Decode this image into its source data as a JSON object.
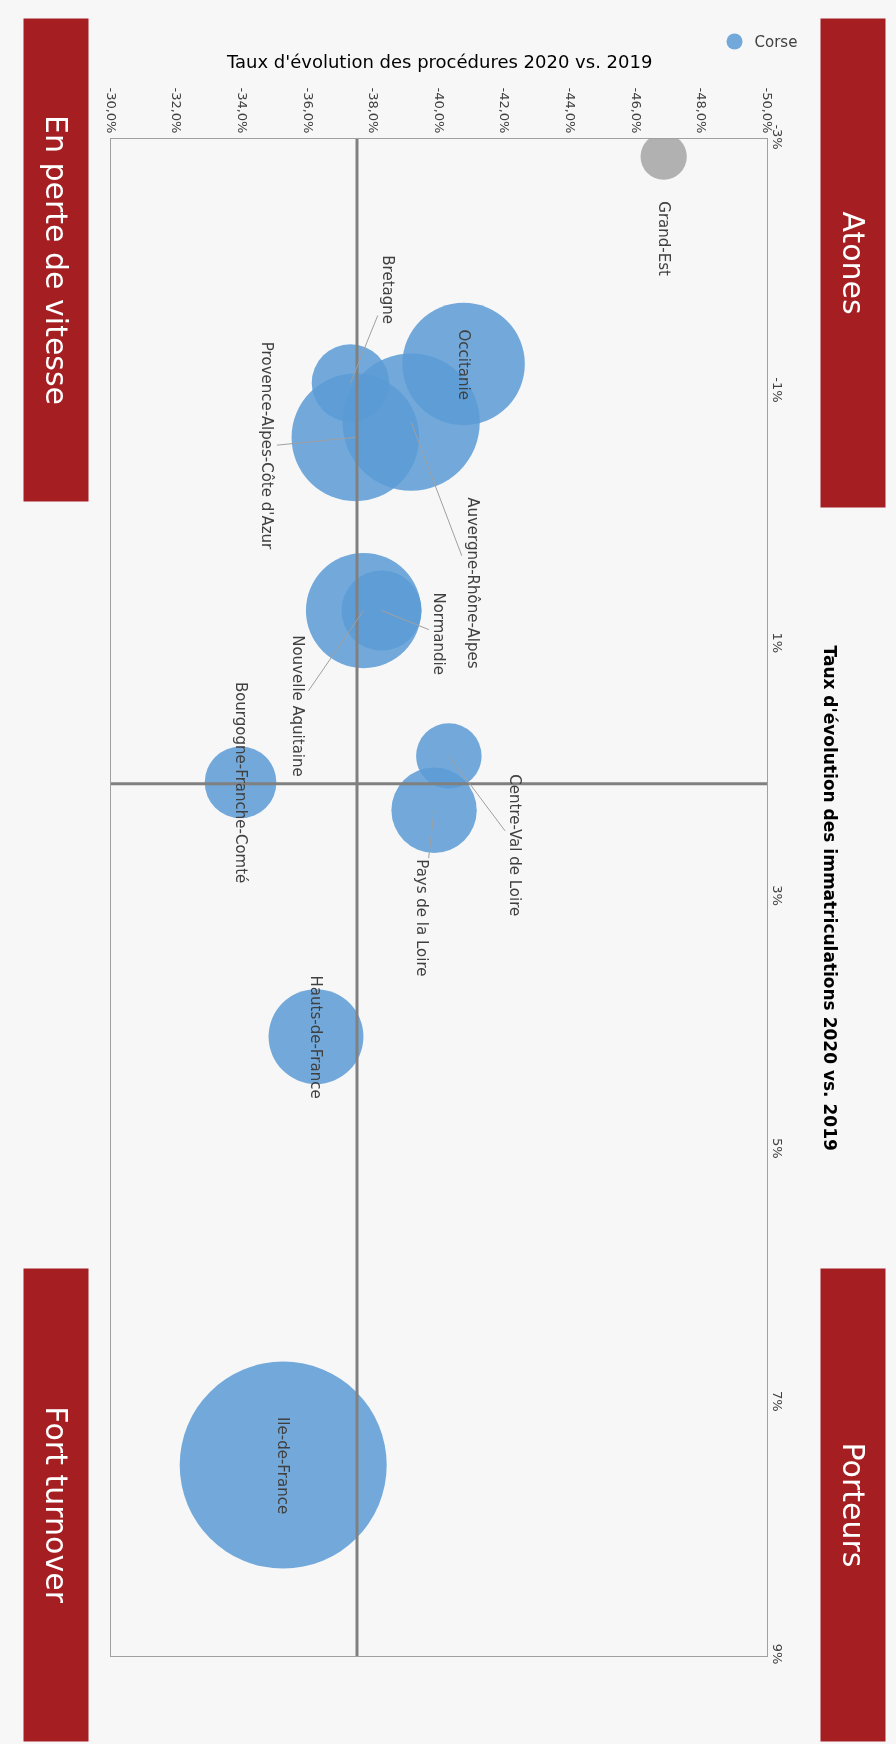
{
  "chart_data": {
    "type": "bubble",
    "xlabel": "Taux d'évolution des procédures 2020 vs. 2019",
    "ylabel": "Taux d'évolution des immatriculations 2020 vs. 2019",
    "xlim": [
      -30,
      -50
    ],
    "xticks": [
      {
        "value": -30,
        "label": "-30,0%"
      },
      {
        "value": -32,
        "label": "-32,0%"
      },
      {
        "value": -34,
        "label": "-34,0%"
      },
      {
        "value": -36,
        "label": "-36,0%"
      },
      {
        "value": -38,
        "label": "-38,0%"
      },
      {
        "value": -40,
        "label": "-40,0%"
      },
      {
        "value": -42,
        "label": "-42,0%"
      },
      {
        "value": -44,
        "label": "-44,0%"
      },
      {
        "value": -46,
        "label": "-46,0%"
      },
      {
        "value": -48,
        "label": "-48,0%"
      },
      {
        "value": -50,
        "label": "-50,0%"
      }
    ],
    "ylim": [
      9,
      -3
    ],
    "yticks": [
      {
        "value": -3,
        "label": "-3%"
      },
      {
        "value": -1,
        "label": "-1%"
      },
      {
        "value": 1,
        "label": "1%"
      },
      {
        "value": 3,
        "label": "3%"
      },
      {
        "value": 5,
        "label": "5%"
      },
      {
        "value": 7,
        "label": "7%"
      },
      {
        "value": 9,
        "label": "9%"
      }
    ],
    "series": [
      {
        "name": "Grand-Est",
        "color": "#a5a5a5",
        "x": [
          -46.85
        ],
        "values": [
          -2.86
        ],
        "sizes": [
          0.05
        ]
      },
      {
        "name": "Occitanie",
        "color": "#5b9bd5",
        "x": [
          -40.75
        ],
        "values": [
          -1.22
        ],
        "sizes": [
          0.35
        ]
      },
      {
        "name": "Auvergne-Rhône-Alpes",
        "color": "#5b9bd5",
        "x": [
          -39.15
        ],
        "values": [
          -0.76
        ],
        "sizes": [
          0.44
        ]
      },
      {
        "name": "Bretagne",
        "color": "#5b9bd5",
        "x": [
          -37.3
        ],
        "values": [
          -1.07
        ],
        "sizes": [
          0.14
        ]
      },
      {
        "name": "Provence-Alpes-Côte d'Azur",
        "color": "#5b9bd5",
        "x": [
          -37.45
        ],
        "values": [
          -0.64
        ],
        "sizes": [
          0.38
        ]
      },
      {
        "name": "Nouvelle Aquitaine",
        "color": "#5b9bd5",
        "x": [
          -37.7
        ],
        "values": [
          0.73
        ],
        "sizes": [
          0.31
        ]
      },
      {
        "name": "Normandie",
        "color": "#5b9bd5",
        "x": [
          -38.25
        ],
        "values": [
          0.73
        ],
        "sizes": [
          0.15
        ]
      },
      {
        "name": "Centre-Val de Loire",
        "color": "#5b9bd5",
        "x": [
          -40.3
        ],
        "values": [
          1.88
        ],
        "sizes": [
          0.1
        ]
      },
      {
        "name": "Pays de la Loire",
        "color": "#5b9bd5",
        "x": [
          -39.85
        ],
        "values": [
          2.31
        ],
        "sizes": [
          0.17
        ]
      },
      {
        "name": "Bourgogne-Franche-Comté",
        "color": "#5b9bd5",
        "x": [
          -33.95
        ],
        "values": [
          2.09
        ],
        "sizes": [
          0.12
        ]
      },
      {
        "name": "Hauts-de-France",
        "color": "#5b9bd5",
        "x": [
          -36.25
        ],
        "values": [
          4.1
        ],
        "sizes": [
          0.21
        ]
      },
      {
        "name": "Ile-de-France",
        "color": "#5b9bd5",
        "x": [
          -35.25
        ],
        "values": [
          7.49
        ],
        "sizes": [
          1
        ]
      },
      {
        "name": "Corse",
        "color": "#5b9bd5",
        "x": [
          null
        ],
        "values": [
          null
        ],
        "sizes": [
          null
        ]
      }
    ],
    "ref_lines": [
      {
        "axis": "x",
        "value": -37.5,
        "color": "#808080"
      },
      {
        "axis": "y",
        "value": 2.1,
        "color": "#808080"
      }
    ],
    "annotations": [
      "Atones",
      "En perte de vitesse",
      "Porteurs",
      "Fort turnover"
    ],
    "legend": "top right",
    "grid": false
  }
}
